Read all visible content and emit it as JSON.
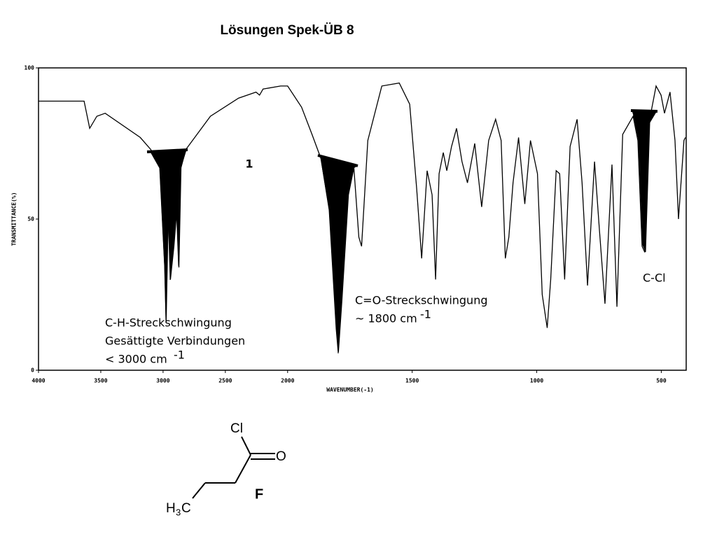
{
  "slide_title": "Lösungen Spek-ÜB 8",
  "annotations": {
    "number": "1",
    "ccl": "C-Cl",
    "co_line1": "C=O-Streckschwingung",
    "co_line2": "~ 1800 cm",
    "co_sup": "-1",
    "ch_line1": "C-H-Streckschwingung",
    "ch_line2": "Gesättigte Verbindungen",
    "ch_line3": "< 3000 cm",
    "ch_sup": "-1"
  },
  "structure": {
    "cl": "Cl",
    "o": "O",
    "label": "F",
    "h": "H",
    "sub": "3",
    "c": "C"
  },
  "chart_data": {
    "type": "line",
    "color": "#000000",
    "xlabel": "WAVENUMBER(-1)",
    "ylabel": "TRANSMITTANCE(%)",
    "xlim": [
      4000,
      400
    ],
    "xscale_break": 2000,
    "ylim": [
      0,
      100
    ],
    "xticks": [
      4000,
      3500,
      3000,
      2500,
      2000,
      1500,
      1000,
      500
    ],
    "yticks": [
      0,
      50,
      100
    ],
    "x": [
      4000,
      3634,
      3589,
      3532,
      3465,
      3183,
      3099,
      3025,
      2986,
      2975,
      2958,
      2941,
      2913,
      2890,
      2873,
      2856,
      2817,
      2620,
      2394,
      2254,
      2225,
      2197,
      2056,
      2000,
      1944,
      1902,
      1866,
      1832,
      1804,
      1796,
      1782,
      1756,
      1734,
      1714,
      1703,
      1678,
      1622,
      1552,
      1510,
      1482,
      1462,
      1440,
      1420,
      1406,
      1392,
      1375,
      1361,
      1342,
      1322,
      1300,
      1278,
      1249,
      1221,
      1193,
      1165,
      1143,
      1126,
      1112,
      1095,
      1073,
      1048,
      1025,
      997,
      978,
      958,
      944,
      922,
      908,
      888,
      866,
      838,
      818,
      796,
      768,
      748,
      726,
      698,
      678,
      655,
      613,
      594,
      577,
      566,
      549,
      521,
      501,
      487,
      465,
      445,
      431,
      409,
      403
    ],
    "values": [
      89,
      89,
      80,
      84,
      85,
      77,
      73,
      67,
      34,
      16,
      53,
      30,
      41,
      53,
      34,
      67,
      73,
      84,
      90,
      92,
      91,
      93,
      94,
      94,
      87,
      78,
      70,
      53,
      14,
      6,
      23,
      58,
      67,
      44,
      41,
      76,
      94,
      95,
      88,
      60,
      37,
      66,
      58,
      30,
      65,
      72,
      66,
      74,
      80,
      69,
      62,
      75,
      54,
      76,
      83,
      76,
      37,
      44,
      62,
      77,
      55,
      76,
      65,
      25,
      14,
      30,
      66,
      65,
      30,
      74,
      83,
      62,
      28,
      69,
      46,
      22,
      68,
      21,
      78,
      84,
      76,
      41,
      39,
      82,
      94,
      91,
      85,
      92,
      76,
      50,
      76,
      77
    ]
  }
}
